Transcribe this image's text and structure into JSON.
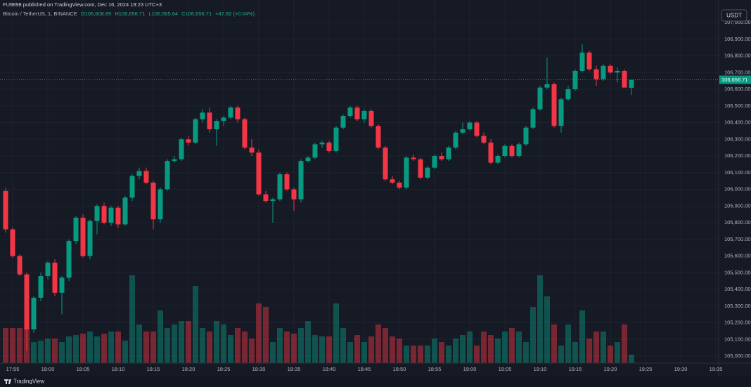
{
  "header": {
    "published": "FU9898 published on TradingView.com, Dec 16, 2024 19:23 UTC+3"
  },
  "chart_data": {
    "type": "candlestick",
    "symbol": "Bitcoin / TetherUS, 1, BINANCE",
    "legend_values": [
      "O106,608.89",
      "H106,656.71",
      "L106,565.64",
      "C106,656.71",
      "+47.82 (+0.04%)"
    ],
    "currency": "USDT",
    "xticks": [
      "17:55",
      "18:00",
      "18:05",
      "18:10",
      "18:15",
      "18:20",
      "18:25",
      "18:30",
      "18:35",
      "18:40",
      "18:45",
      "18:50",
      "18:55",
      "19:00",
      "19:05",
      "19:10",
      "19:15",
      "19:20",
      "19:25",
      "19:30",
      "19:35"
    ],
    "open": [
      105990,
      105760,
      105600,
      105490,
      105160,
      105350,
      105480,
      105560,
      105380,
      105470,
      105690,
      105830,
      105600,
      105810,
      105900,
      105800,
      105890,
      105790,
      105950,
      106080,
      106110,
      106040,
      105820,
      106000,
      106170,
      106180,
      106300,
      106280,
      106420,
      106460,
      106360,
      106410,
      106430,
      106490,
      106420,
      106250,
      106220,
      105970,
      105930,
      105940,
      106090,
      106000,
      105940,
      106170,
      106190,
      106270,
      106280,
      106230,
      106370,
      106440,
      106490,
      106420,
      106470,
      106380,
      106250,
      106060,
      106040,
      106010,
      106190,
      106180,
      106070,
      106130,
      106200,
      106180,
      106250,
      106340,
      106360,
      106400,
      106320,
      106280,
      106160,
      106200,
      106260,
      106200,
      106270,
      106370,
      106480,
      106610,
      106630,
      106380,
      106540,
      106600,
      106710,
      106820,
      106720,
      106660,
      106740,
      106700,
      106710,
      106608.89
    ],
    "high": [
      106010,
      105770,
      105610,
      105500,
      105360,
      105500,
      105570,
      105580,
      105480,
      105700,
      105840,
      105850,
      105820,
      105910,
      105920,
      105900,
      105900,
      105960,
      106090,
      106130,
      106130,
      106050,
      106010,
      106180,
      106200,
      106310,
      106320,
      106430,
      106480,
      106490,
      106420,
      106440,
      106500,
      106500,
      106430,
      106300,
      106240,
      105990,
      105950,
      106100,
      106100,
      106010,
      106180,
      106200,
      106280,
      106290,
      106290,
      106380,
      106450,
      106500,
      106500,
      106480,
      106480,
      106390,
      106260,
      106080,
      106050,
      106200,
      106210,
      106190,
      106140,
      106210,
      106220,
      106260,
      106350,
      106400,
      106410,
      106410,
      106340,
      106300,
      106210,
      106270,
      106270,
      106280,
      106380,
      106490,
      106620,
      106790,
      106640,
      106550,
      106620,
      106720,
      106870,
      106830,
      106740,
      106750,
      106750,
      106730,
      106720,
      106656.71
    ],
    "low": [
      105740,
      105590,
      105480,
      105030,
      105140,
      105330,
      105460,
      105360,
      105250,
      105450,
      105670,
      105590,
      105580,
      105730,
      105790,
      105780,
      105770,
      105780,
      105930,
      106060,
      106030,
      105760,
      105800,
      105990,
      106160,
      106170,
      106260,
      106270,
      106400,
      106340,
      106260,
      106380,
      106420,
      106400,
      106240,
      106200,
      105960,
      105920,
      105800,
      105930,
      105990,
      105870,
      105920,
      106160,
      106180,
      106250,
      106220,
      106220,
      106360,
      106430,
      106410,
      106400,
      106370,
      106240,
      106050,
      106030,
      106000,
      106000,
      106170,
      106060,
      106060,
      106120,
      106170,
      106170,
      106240,
      106330,
      106350,
      106310,
      106270,
      106150,
      106150,
      106190,
      106190,
      106190,
      106260,
      106360,
      106470,
      106600,
      106370,
      106340,
      106530,
      106590,
      106700,
      106710,
      106620,
      106650,
      106690,
      106640,
      106620,
      106565.64
    ],
    "close": [
      105760,
      105600,
      105490,
      105160,
      105350,
      105480,
      105560,
      105380,
      105470,
      105690,
      105830,
      105600,
      105810,
      105900,
      105800,
      105890,
      105790,
      105950,
      106080,
      106110,
      106040,
      105820,
      106000,
      106170,
      106180,
      106300,
      106280,
      106420,
      106460,
      106360,
      106410,
      106430,
      106490,
      106420,
      106250,
      106220,
      105970,
      105930,
      105940,
      106090,
      106000,
      105940,
      106170,
      106190,
      106270,
      106280,
      106230,
      106370,
      106440,
      106490,
      106420,
      106470,
      106380,
      106250,
      106060,
      106040,
      106010,
      106190,
      106180,
      106070,
      106130,
      106200,
      106180,
      106250,
      106340,
      106360,
      106400,
      106320,
      106280,
      106160,
      106200,
      106260,
      106200,
      106270,
      106370,
      106480,
      106610,
      106630,
      106380,
      106540,
      106600,
      106710,
      106820,
      106720,
      106660,
      106740,
      106700,
      106710,
      106610,
      106656.71
    ],
    "volume": [
      50,
      50,
      50,
      50,
      30,
      32,
      35,
      35,
      30,
      38,
      40,
      42,
      45,
      38,
      42,
      45,
      45,
      32,
      125,
      55,
      45,
      45,
      75,
      50,
      55,
      60,
      60,
      110,
      50,
      45,
      60,
      55,
      40,
      50,
      45,
      35,
      85,
      80,
      30,
      50,
      45,
      42,
      50,
      60,
      40,
      38,
      38,
      85,
      50,
      30,
      40,
      30,
      38,
      55,
      50,
      38,
      35,
      25,
      25,
      25,
      25,
      35,
      30,
      25,
      35,
      40,
      45,
      25,
      45,
      40,
      35,
      45,
      50,
      45,
      30,
      80,
      125,
      95,
      55,
      25,
      55,
      30,
      75,
      35,
      45,
      45,
      25,
      30,
      55,
      12
    ],
    "up_color": "#089981",
    "down_color": "#f23645",
    "ylim": [
      104958,
      107135
    ],
    "yticks": [
      {
        "value": 105000,
        "label": "105,000.00"
      },
      {
        "value": 105100,
        "label": "105,100.00"
      },
      {
        "value": 105200,
        "label": "105,200.00"
      },
      {
        "value": 105300,
        "label": "105,300.00"
      },
      {
        "value": 105400,
        "label": "105,400.00"
      },
      {
        "value": 105500,
        "label": "105,500.00"
      },
      {
        "value": 105600,
        "label": "105,600.00"
      },
      {
        "value": 105700,
        "label": "105,700.00"
      },
      {
        "value": 105800,
        "label": "105,800.00"
      },
      {
        "value": 105900,
        "label": "105,900.00"
      },
      {
        "value": 106000,
        "label": "106,000.00"
      },
      {
        "value": 106100,
        "label": "106,100.00"
      },
      {
        "value": 106200,
        "label": "106,200.00"
      },
      {
        "value": 106300,
        "label": "106,300.00"
      },
      {
        "value": 106400,
        "label": "106,400.00"
      },
      {
        "value": 106500,
        "label": "106,500.00"
      },
      {
        "value": 106600,
        "label": "106,600.00"
      },
      {
        "value": 106700,
        "label": "106,700.00"
      },
      {
        "value": 106800,
        "label": "106,800.00"
      },
      {
        "value": 106900,
        "label": "106,900.00"
      },
      {
        "value": 107000,
        "label": "107,000.00"
      }
    ],
    "grid": true,
    "last_price_label": "106,656.71"
  },
  "footer": {
    "brand": "TradingView"
  }
}
